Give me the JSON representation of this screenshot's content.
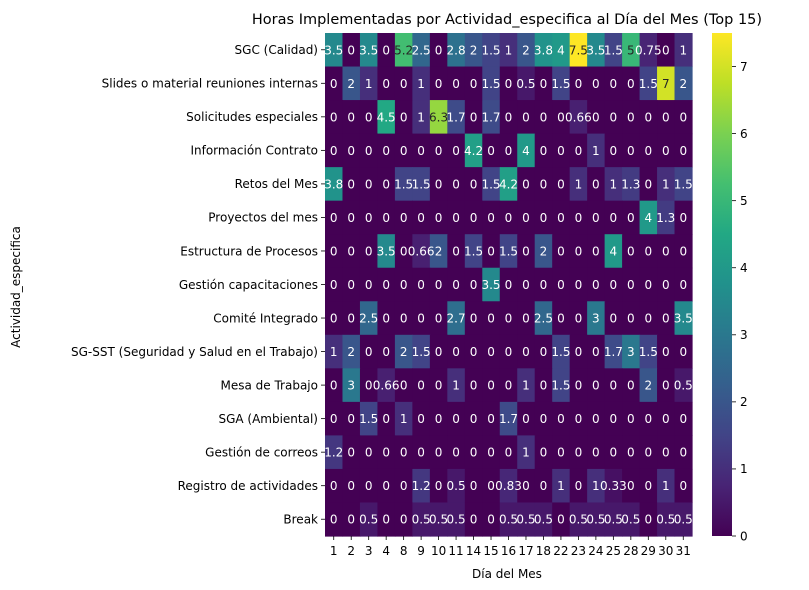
{
  "chart_data": {
    "type": "heatmap",
    "title": "Horas Implementadas por Actividad_especifica al Día del Mes (Top 15)",
    "xlabel": "Día del Mes",
    "ylabel": "Actividad_especifica",
    "x": [
      "1",
      "2",
      "3",
      "4",
      "8",
      "9",
      "10",
      "11",
      "14",
      "15",
      "16",
      "17",
      "18",
      "22",
      "23",
      "24",
      "25",
      "28",
      "29",
      "30",
      "31"
    ],
    "y": [
      "SGC (Calidad)",
      "Slides o material reuniones internas",
      "Solicitudes especiales",
      "Información Contrato",
      "Retos del Mes",
      "Proyectos del mes",
      "Estructura de Procesos",
      "Gestión capacitaciones",
      "Comité Integrado",
      "SG-SST (Seguridad y Salud en el Trabajo)",
      "Mesa de Trabajo",
      "SGA (Ambiental)",
      "Gestión de correos",
      "Registro de actividades",
      "Break"
    ],
    "values": [
      [
        3.5,
        0,
        3.5,
        0,
        5.2,
        2.5,
        0,
        2.8,
        2,
        1.5,
        1,
        2,
        3.8,
        4,
        7.5,
        3.5,
        1.5,
        5,
        0.75,
        0,
        1
      ],
      [
        0,
        2,
        1,
        0,
        0,
        1,
        0,
        0,
        0,
        1.5,
        0,
        0.5,
        0,
        1.5,
        0,
        0,
        0,
        0,
        1.5,
        7,
        2
      ],
      [
        0,
        0,
        0,
        4.5,
        0,
        1,
        6.3,
        1.7,
        0,
        1.7,
        0,
        0,
        0,
        0,
        0.66,
        0,
        0,
        0,
        0,
        0,
        0
      ],
      [
        0,
        0,
        0,
        0,
        0,
        0,
        0,
        0,
        4.2,
        0,
        0,
        4,
        0,
        0,
        0,
        1,
        0,
        0,
        0,
        0,
        0
      ],
      [
        3.8,
        0,
        0,
        0,
        1.5,
        1.5,
        0,
        0,
        0,
        1.5,
        4.2,
        0,
        0,
        0,
        1,
        0,
        1,
        1.3,
        0,
        1,
        1.5
      ],
      [
        0,
        0,
        0,
        0,
        0,
        0,
        0,
        0,
        0,
        0,
        0,
        0,
        0,
        0,
        0,
        0,
        0,
        0,
        4,
        1.3,
        0
      ],
      [
        0,
        0,
        0,
        3.5,
        0,
        0.66,
        2,
        0,
        1.5,
        0,
        1.5,
        0,
        2,
        0,
        0,
        0,
        4,
        0,
        0,
        0,
        0
      ],
      [
        0,
        0,
        0,
        0,
        0,
        0,
        0,
        0,
        0,
        3.5,
        0,
        0,
        0,
        0,
        0,
        0,
        0,
        0,
        0,
        0,
        0
      ],
      [
        0,
        0,
        2.5,
        0,
        0,
        0,
        0,
        2.7,
        0,
        0,
        0,
        0,
        2.5,
        0,
        0,
        3,
        0,
        0,
        0,
        0,
        3.5
      ],
      [
        1,
        2,
        0,
        0,
        2,
        1.5,
        0,
        0,
        0,
        0,
        0,
        0,
        0,
        1.5,
        0,
        0,
        1.7,
        3,
        1.5,
        0,
        0
      ],
      [
        0,
        3,
        0,
        0.66,
        0,
        0,
        0,
        1,
        0,
        0,
        0,
        1,
        0,
        1.5,
        0,
        0,
        0,
        0,
        2,
        0,
        0.5
      ],
      [
        0,
        0,
        1.5,
        0,
        1,
        0,
        0,
        0,
        0,
        0,
        1.7,
        0,
        0,
        0,
        0,
        0,
        0,
        0,
        0,
        0,
        0
      ],
      [
        1.2,
        0,
        0,
        0,
        0,
        0,
        0,
        0,
        0,
        0,
        0,
        1,
        0,
        0,
        0,
        0,
        0,
        0,
        0,
        0,
        0
      ],
      [
        0,
        0,
        0,
        0,
        0,
        1.2,
        0,
        0.5,
        0,
        0,
        0.83,
        0,
        0,
        1,
        0,
        1,
        0.33,
        0,
        0,
        1,
        0
      ],
      [
        0,
        0,
        0.5,
        0,
        0,
        0.5,
        0.5,
        0.5,
        0,
        0,
        0.5,
        0.5,
        0.5,
        0,
        0.5,
        0.5,
        0.5,
        0.5,
        0,
        0.5,
        0.5
      ]
    ],
    "labels": [
      [
        "3.5",
        "0",
        "3.5",
        "0",
        "5.2",
        "2.5",
        "0",
        "2.8",
        "2",
        "1.5",
        "1",
        "2",
        "3.8",
        "4",
        "7.5",
        "3.5",
        "1.5",
        "5",
        "0.75",
        "0",
        "1"
      ],
      [
        "0",
        "2",
        "1",
        "0",
        "0",
        "1",
        "0",
        "0",
        "0",
        "1.5",
        "0",
        "0.5",
        "0",
        "1.5",
        "0",
        "0",
        "0",
        "0",
        "1.5",
        "7",
        "2"
      ],
      [
        "0",
        "0",
        "0",
        "4.5",
        "0",
        "1",
        "6.3",
        "1.7",
        "0",
        "1.7",
        "0",
        "0",
        "0",
        "0",
        "0.66",
        "0",
        "0",
        "0",
        "0",
        "0",
        "0"
      ],
      [
        "0",
        "0",
        "0",
        "0",
        "0",
        "0",
        "0",
        "0",
        "4.2",
        "0",
        "0",
        "4",
        "0",
        "0",
        "0",
        "1",
        "0",
        "0",
        "0",
        "0",
        "0"
      ],
      [
        "3.8",
        "0",
        "0",
        "0",
        "1.5",
        "1.5",
        "0",
        "0",
        "0",
        "1.5",
        "4.2",
        "0",
        "0",
        "0",
        "1",
        "0",
        "1",
        "1.3",
        "0",
        "1",
        "1.5"
      ],
      [
        "0",
        "0",
        "0",
        "0",
        "0",
        "0",
        "0",
        "0",
        "0",
        "0",
        "0",
        "0",
        "0",
        "0",
        "0",
        "0",
        "0",
        "0",
        "4",
        "1.3",
        "0"
      ],
      [
        "0",
        "0",
        "0",
        "3.5",
        "0",
        "0.66",
        "2",
        "0",
        "1.5",
        "0",
        "1.5",
        "0",
        "2",
        "0",
        "0",
        "0",
        "4",
        "0",
        "0",
        "0",
        "0"
      ],
      [
        "0",
        "0",
        "0",
        "0",
        "0",
        "0",
        "0",
        "0",
        "0",
        "3.5",
        "0",
        "0",
        "0",
        "0",
        "0",
        "0",
        "0",
        "0",
        "0",
        "0",
        "0"
      ],
      [
        "0",
        "0",
        "2.5",
        "0",
        "0",
        "0",
        "0",
        "2.7",
        "0",
        "0",
        "0",
        "0",
        "2.5",
        "0",
        "0",
        "3",
        "0",
        "0",
        "0",
        "0",
        "3.5"
      ],
      [
        "1",
        "2",
        "0",
        "0",
        "2",
        "1.5",
        "0",
        "0",
        "0",
        "0",
        "0",
        "0",
        "0",
        "1.5",
        "0",
        "0",
        "1.7",
        "3",
        "1.5",
        "0",
        "0"
      ],
      [
        "0",
        "3",
        "0",
        "0.66",
        "0",
        "0",
        "0",
        "1",
        "0",
        "0",
        "0",
        "1",
        "0",
        "1.5",
        "0",
        "0",
        "0",
        "0",
        "2",
        "0",
        "0.5"
      ],
      [
        "0",
        "0",
        "1.5",
        "0",
        "1",
        "0",
        "0",
        "0",
        "0",
        "0",
        "1.7",
        "0",
        "0",
        "0",
        "0",
        "0",
        "0",
        "0",
        "0",
        "0",
        "0"
      ],
      [
        "1.2",
        "0",
        "0",
        "0",
        "0",
        "0",
        "0",
        "0",
        "0",
        "0",
        "0",
        "1",
        "0",
        "0",
        "0",
        "0",
        "0",
        "0",
        "0",
        "0",
        "0"
      ],
      [
        "0",
        "0",
        "0",
        "0",
        "0",
        "1.2",
        "0",
        "0.5",
        "0",
        "0",
        "0.83",
        "0",
        "0",
        "1",
        "0",
        "1",
        "0.33",
        "0",
        "0",
        "1",
        "0"
      ],
      [
        "0",
        "0",
        "0.5",
        "0",
        "0",
        "0.5",
        "0.5",
        "0.5",
        "0",
        "0",
        "0.5",
        "0.5",
        "0.5",
        "0",
        "0.5",
        "0.5",
        "0.5",
        "0.5",
        "0",
        "0.5",
        "0.5"
      ]
    ],
    "colormap": "viridis",
    "vmin": 0,
    "vmax": 7.5,
    "colorbar_ticks": [
      "0",
      "1",
      "2",
      "3",
      "4",
      "5",
      "6",
      "7"
    ],
    "colorbar_tick_values": [
      0,
      1,
      2,
      3,
      4,
      5,
      6,
      7
    ],
    "grid": false
  }
}
